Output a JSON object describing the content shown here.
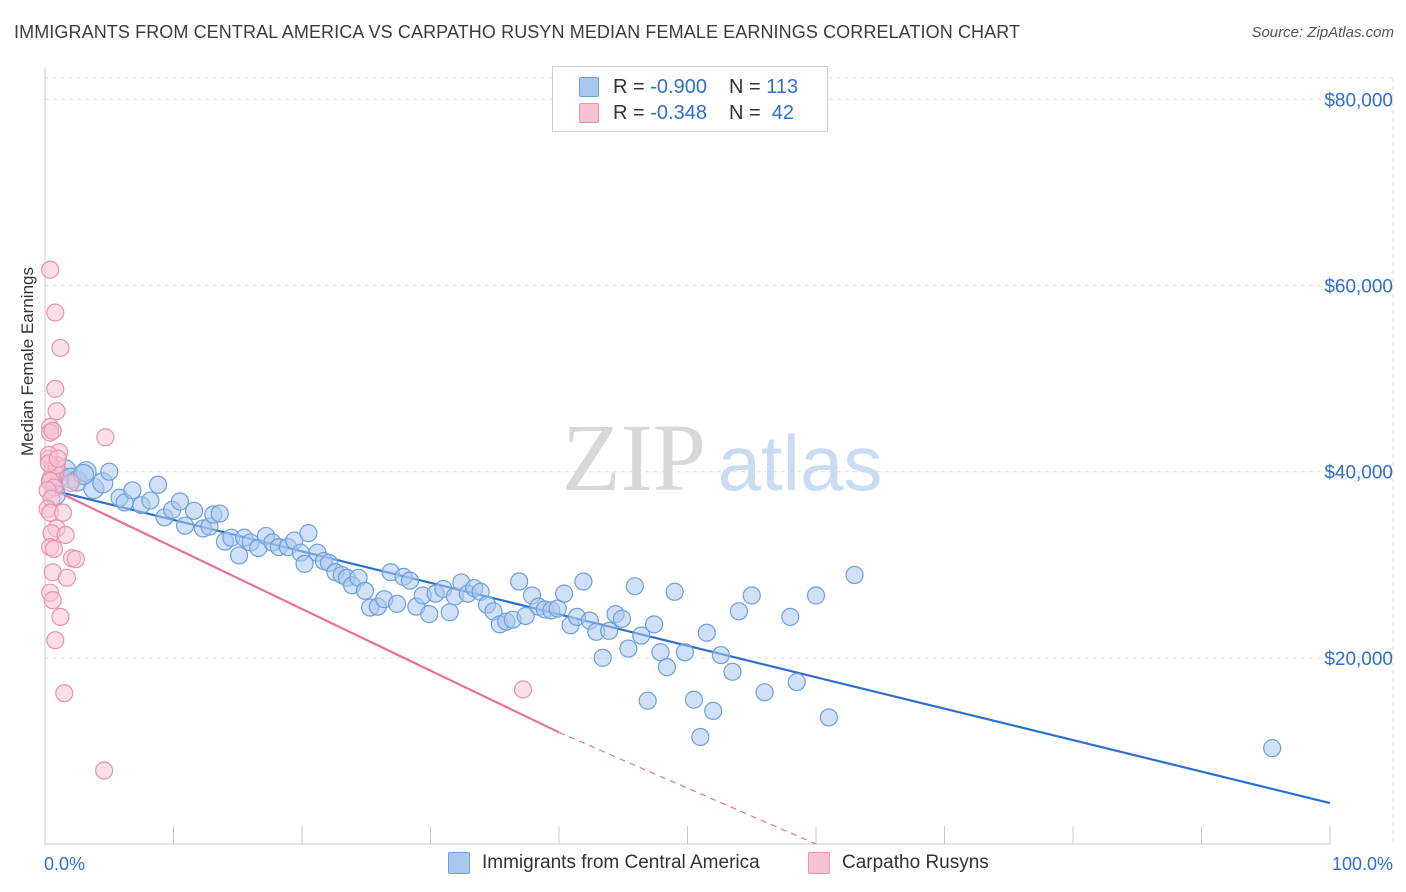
{
  "title": "IMMIGRANTS FROM CENTRAL AMERICA VS CARPATHO RUSYN MEDIAN FEMALE EARNINGS CORRELATION CHART",
  "source": "Source: ZipAtlas.com",
  "watermark_zip": "ZIP",
  "watermark_atlas": "atlas",
  "legend": {
    "r_label": "R =",
    "n_label": "N =",
    "rows": [
      {
        "r": "-0.900",
        "n": "113"
      },
      {
        "r": "-0.348",
        "n": "42"
      }
    ]
  },
  "colors": {
    "blue": "#2e6fcc",
    "blue_fill": "#a9c8f0",
    "pink": "#e8709a",
    "pink_fill": "#f7b8cb",
    "grid": "#dcdcdc",
    "tick_label": "#2e6fcc"
  },
  "chart_data": {
    "type": "scatter",
    "title": "IMMIGRANTS FROM CENTRAL AMERICA VS CARPATHO RUSYN MEDIAN FEMALE EARNINGS CORRELATION CHART",
    "xlabel": "",
    "ylabel": "Median Female Earnings",
    "xlim": [
      0,
      100
    ],
    "ylim": [
      0,
      80000
    ],
    "x_tick_labels": [
      "0.0%",
      "100.0%"
    ],
    "y_ticks": [
      20000,
      40000,
      60000,
      80000
    ],
    "y_tick_labels": [
      "$20,000",
      "$40,000",
      "$60,000",
      "$80,000"
    ],
    "grid": true,
    "legend_position": "top-center",
    "series": [
      {
        "name": "Immigrants from Central America",
        "color": "#2e6fcc",
        "trend": {
          "x0": 0,
          "y0": 38200,
          "x1": 100,
          "y1": 4400
        },
        "points": [
          [
            0.5,
            39000
          ],
          [
            0.8,
            37500
          ],
          [
            1.2,
            39500
          ],
          [
            1.6,
            40200
          ],
          [
            2.0,
            39300
          ],
          [
            2.5,
            39000
          ],
          [
            3.2,
            40000
          ],
          [
            3.8,
            38200
          ],
          [
            4.5,
            38800
          ],
          [
            5.0,
            40000
          ],
          [
            5.8,
            37200
          ],
          [
            6.2,
            36700
          ],
          [
            6.8,
            38000
          ],
          [
            7.5,
            36400
          ],
          [
            8.2,
            36900
          ],
          [
            8.8,
            38600
          ],
          [
            9.3,
            35100
          ],
          [
            9.9,
            35900
          ],
          [
            10.5,
            36800
          ],
          [
            10.9,
            34200
          ],
          [
            11.6,
            35800
          ],
          [
            12.3,
            33900
          ],
          [
            12.8,
            34100
          ],
          [
            13.1,
            35400
          ],
          [
            13.6,
            35500
          ],
          [
            14.0,
            32500
          ],
          [
            14.5,
            32900
          ],
          [
            15.1,
            31000
          ],
          [
            15.5,
            32900
          ],
          [
            16.0,
            32400
          ],
          [
            16.6,
            31800
          ],
          [
            17.2,
            33100
          ],
          [
            17.7,
            32400
          ],
          [
            18.2,
            31900
          ],
          [
            18.9,
            31900
          ],
          [
            19.4,
            32600
          ],
          [
            19.9,
            31300
          ],
          [
            20.2,
            30100
          ],
          [
            20.5,
            33400
          ],
          [
            21.2,
            31300
          ],
          [
            21.7,
            30400
          ],
          [
            22.1,
            30200
          ],
          [
            22.6,
            29200
          ],
          [
            23.1,
            28900
          ],
          [
            23.5,
            28600
          ],
          [
            23.9,
            27800
          ],
          [
            24.4,
            28600
          ],
          [
            24.9,
            27200
          ],
          [
            25.3,
            25400
          ],
          [
            25.9,
            25500
          ],
          [
            26.4,
            26300
          ],
          [
            26.9,
            29200
          ],
          [
            27.4,
            25800
          ],
          [
            27.9,
            28700
          ],
          [
            28.4,
            28300
          ],
          [
            28.9,
            25500
          ],
          [
            29.4,
            26700
          ],
          [
            29.9,
            24700
          ],
          [
            30.4,
            26900
          ],
          [
            31.0,
            27400
          ],
          [
            31.5,
            24900
          ],
          [
            31.9,
            26600
          ],
          [
            32.4,
            28100
          ],
          [
            32.9,
            26900
          ],
          [
            33.4,
            27500
          ],
          [
            33.9,
            27100
          ],
          [
            34.4,
            25700
          ],
          [
            34.9,
            25000
          ],
          [
            35.4,
            23600
          ],
          [
            35.9,
            23900
          ],
          [
            36.4,
            24100
          ],
          [
            36.9,
            28200
          ],
          [
            37.4,
            24500
          ],
          [
            37.9,
            26700
          ],
          [
            38.4,
            25500
          ],
          [
            38.9,
            25200
          ],
          [
            39.4,
            25100
          ],
          [
            39.9,
            25300
          ],
          [
            40.4,
            26900
          ],
          [
            40.9,
            23500
          ],
          [
            41.4,
            24400
          ],
          [
            41.9,
            28200
          ],
          [
            42.4,
            24000
          ],
          [
            42.9,
            22800
          ],
          [
            43.4,
            20000
          ],
          [
            43.9,
            22900
          ],
          [
            44.4,
            24700
          ],
          [
            44.9,
            24200
          ],
          [
            45.4,
            21000
          ],
          [
            45.9,
            27700
          ],
          [
            46.4,
            22400
          ],
          [
            46.9,
            15400
          ],
          [
            47.4,
            23600
          ],
          [
            47.9,
            20600
          ],
          [
            48.4,
            19000
          ],
          [
            49.0,
            27100
          ],
          [
            49.8,
            20600
          ],
          [
            50.5,
            15500
          ],
          [
            51.0,
            11500
          ],
          [
            51.5,
            22700
          ],
          [
            52.0,
            14300
          ],
          [
            52.6,
            20300
          ],
          [
            53.5,
            18500
          ],
          [
            54.0,
            25000
          ],
          [
            55.0,
            26700
          ],
          [
            56.0,
            16300
          ],
          [
            58.0,
            24400
          ],
          [
            58.5,
            17400
          ],
          [
            60.0,
            26700
          ],
          [
            61.0,
            13600
          ],
          [
            63.0,
            28900
          ],
          [
            95.5,
            10300
          ],
          [
            3.0,
            39700
          ]
        ]
      },
      {
        "name": "Carpatho Rusyns",
        "color": "#e8709a",
        "trend": {
          "x0": 0,
          "y0": 38500,
          "x1": 40,
          "y1": 12000
        },
        "trend_dashed": {
          "x0": 40,
          "y0": 12000,
          "x1": 60,
          "y1": -1300
        },
        "points": [
          [
            0.4,
            61700
          ],
          [
            0.8,
            57100
          ],
          [
            1.2,
            53300
          ],
          [
            0.8,
            48900
          ],
          [
            0.4,
            44800
          ],
          [
            0.9,
            46500
          ],
          [
            0.4,
            44200
          ],
          [
            0.6,
            40200
          ],
          [
            0.3,
            41400
          ],
          [
            0.8,
            39900
          ],
          [
            1.1,
            42100
          ],
          [
            0.5,
            39400
          ],
          [
            0.9,
            40700
          ],
          [
            0.3,
            41800
          ],
          [
            0.4,
            39000
          ],
          [
            0.7,
            38300
          ],
          [
            0.2,
            38000
          ],
          [
            0.5,
            37100
          ],
          [
            0.2,
            36000
          ],
          [
            0.4,
            35600
          ],
          [
            0.9,
            33900
          ],
          [
            1.4,
            35600
          ],
          [
            0.5,
            33400
          ],
          [
            1.6,
            33200
          ],
          [
            0.4,
            31900
          ],
          [
            0.7,
            31700
          ],
          [
            2.1,
            30700
          ],
          [
            2.4,
            30600
          ],
          [
            0.6,
            29200
          ],
          [
            1.7,
            28600
          ],
          [
            0.4,
            27000
          ],
          [
            0.6,
            26200
          ],
          [
            1.2,
            24400
          ],
          [
            0.8,
            21900
          ],
          [
            1.5,
            16200
          ],
          [
            4.7,
            43700
          ],
          [
            2.0,
            38800
          ],
          [
            4.6,
            7900
          ],
          [
            37.2,
            16600
          ],
          [
            0.3,
            40900
          ],
          [
            1.0,
            41400
          ],
          [
            0.6,
            44400
          ]
        ]
      }
    ]
  },
  "bottom_legend": [
    "Immigrants from Central America",
    "Carpatho Rusyns"
  ]
}
